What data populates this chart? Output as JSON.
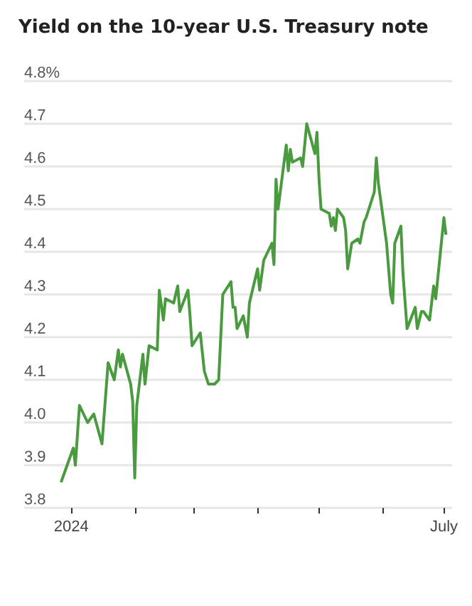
{
  "chart_data": {
    "type": "line",
    "title": "Yield on the 10-year U.S. Treasury note",
    "x": [
      "2023-12-27",
      "2024-01-02",
      "2024-01-03",
      "2024-01-05",
      "2024-01-09",
      "2024-01-12",
      "2024-01-16",
      "2024-01-19",
      "2024-01-22",
      "2024-01-24",
      "2024-01-25",
      "2024-01-26",
      "2024-01-30",
      "2024-01-31",
      "2024-02-01",
      "2024-02-02",
      "2024-02-05",
      "2024-02-06",
      "2024-02-08",
      "2024-02-12",
      "2024-02-13",
      "2024-02-15",
      "2024-02-16",
      "2024-02-20",
      "2024-02-22",
      "2024-02-23",
      "2024-02-27",
      "2024-02-28",
      "2024-02-29",
      "2024-03-04",
      "2024-03-06",
      "2024-03-08",
      "2024-03-11",
      "2024-03-13",
      "2024-03-15",
      "2024-03-19",
      "2024-03-20",
      "2024-03-21",
      "2024-03-22",
      "2024-03-25",
      "2024-03-27",
      "2024-03-28",
      "2024-04-01",
      "2024-04-02",
      "2024-04-04",
      "2024-04-08",
      "2024-04-09",
      "2024-04-10",
      "2024-04-11",
      "2024-04-15",
      "2024-04-16",
      "2024-04-17",
      "2024-04-18",
      "2024-04-22",
      "2024-04-23",
      "2024-04-25",
      "2024-04-29",
      "2024-04-30",
      "2024-05-01",
      "2024-05-02",
      "2024-05-06",
      "2024-05-07",
      "2024-05-08",
      "2024-05-09",
      "2024-05-10",
      "2024-05-13",
      "2024-05-14",
      "2024-05-15",
      "2024-05-17",
      "2024-05-20",
      "2024-05-21",
      "2024-05-23",
      "2024-05-24",
      "2024-05-28",
      "2024-05-29",
      "2024-05-30",
      "2024-06-03",
      "2024-06-05",
      "2024-06-06",
      "2024-06-07",
      "2024-06-10",
      "2024-06-11",
      "2024-06-13",
      "2024-06-17",
      "2024-06-18",
      "2024-06-20",
      "2024-06-21",
      "2024-06-24",
      "2024-06-26",
      "2024-06-27",
      "2024-07-01",
      "2024-07-02"
    ],
    "series": [
      {
        "color": "#4a9a3f",
        "values": [
          3.86,
          3.94,
          3.9,
          4.04,
          4.0,
          4.02,
          3.95,
          4.14,
          4.1,
          4.17,
          4.13,
          4.16,
          4.09,
          4.05,
          3.87,
          4.04,
          4.16,
          4.09,
          4.18,
          4.17,
          4.31,
          4.24,
          4.29,
          4.28,
          4.32,
          4.26,
          4.31,
          4.25,
          4.18,
          4.21,
          4.12,
          4.09,
          4.09,
          4.1,
          4.3,
          4.33,
          4.27,
          4.27,
          4.22,
          4.25,
          4.2,
          4.28,
          4.36,
          4.31,
          4.38,
          4.42,
          4.37,
          4.57,
          4.5,
          4.65,
          4.59,
          4.64,
          4.61,
          4.62,
          4.6,
          4.7,
          4.63,
          4.68,
          4.57,
          4.5,
          4.49,
          4.46,
          4.48,
          4.45,
          4.5,
          4.48,
          4.45,
          4.36,
          4.42,
          4.43,
          4.42,
          4.47,
          4.48,
          4.54,
          4.62,
          4.56,
          4.42,
          4.3,
          4.28,
          4.42,
          4.46,
          4.35,
          4.22,
          4.27,
          4.22,
          4.26,
          4.26,
          4.24,
          4.32,
          4.29,
          4.48,
          4.44
        ]
      }
    ],
    "xlim": [
      "2023-12-09",
      "2024-07-05"
    ],
    "xticks": [
      {
        "value": "2024-01-01",
        "label": "2024"
      },
      {
        "value": "2024-02-01",
        "label": null
      },
      {
        "value": "2024-03-01",
        "label": null
      },
      {
        "value": "2024-04-01",
        "label": null
      },
      {
        "value": "2024-05-01",
        "label": null
      },
      {
        "value": "2024-06-01",
        "label": null
      },
      {
        "value": "2024-07-01",
        "label": "July"
      }
    ],
    "ylim": [
      3.8,
      4.8
    ],
    "yticks": [
      3.8,
      3.9,
      {
        "value": 4.0,
        "label": "4.0"
      },
      4.1,
      4.2,
      4.3,
      4.4,
      4.5,
      4.6,
      4.7,
      {
        "value": 4.8,
        "label": "4.8%"
      }
    ],
    "grid": "y",
    "marker": "none",
    "line_style": "solid"
  }
}
